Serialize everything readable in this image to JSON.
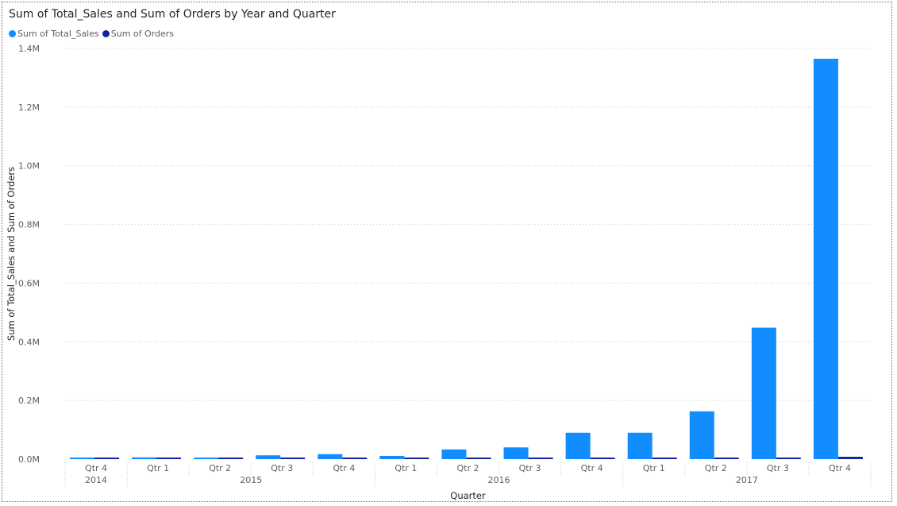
{
  "chart_data": {
    "type": "bar",
    "title": "Sum of Total_Sales and Sum of Orders by Year and Quarter",
    "xlabel": "Quarter",
    "ylabel": "Sum of Total_Sales and Sum of Orders",
    "ylim": [
      0,
      1400000
    ],
    "yticks": [
      {
        "value": 0,
        "label": "0.0M"
      },
      {
        "value": 200000,
        "label": "0.2M"
      },
      {
        "value": 400000,
        "label": "0.4M"
      },
      {
        "value": 600000,
        "label": "0.6M"
      },
      {
        "value": 800000,
        "label": "0.8M"
      },
      {
        "value": 1000000,
        "label": "1.0M"
      },
      {
        "value": 1200000,
        "label": "1.2M"
      },
      {
        "value": 1400000,
        "label": "1.4M"
      }
    ],
    "grid": true,
    "legend_position": "top-left",
    "categories": [
      {
        "quarter": "Qtr 4",
        "year": "2014"
      },
      {
        "quarter": "Qtr 1",
        "year": "2015"
      },
      {
        "quarter": "Qtr 2",
        "year": "2015"
      },
      {
        "quarter": "Qtr 3",
        "year": "2015"
      },
      {
        "quarter": "Qtr 4",
        "year": "2015"
      },
      {
        "quarter": "Qtr 1",
        "year": "2016"
      },
      {
        "quarter": "Qtr 2",
        "year": "2016"
      },
      {
        "quarter": "Qtr 3",
        "year": "2016"
      },
      {
        "quarter": "Qtr 4",
        "year": "2016"
      },
      {
        "quarter": "Qtr 1",
        "year": "2017"
      },
      {
        "quarter": "Qtr 2",
        "year": "2017"
      },
      {
        "quarter": "Qtr 3",
        "year": "2017"
      },
      {
        "quarter": "Qtr 4",
        "year": "2017"
      }
    ],
    "year_groups": [
      {
        "year": "2014",
        "start": 0,
        "end": 0
      },
      {
        "year": "2015",
        "start": 1,
        "end": 4
      },
      {
        "year": "2016",
        "start": 5,
        "end": 8
      },
      {
        "year": "2017",
        "start": 9,
        "end": 12
      }
    ],
    "series": [
      {
        "name": "Sum of Total_Sales",
        "color": "#118dff",
        "values": [
          4000,
          6000,
          3000,
          13000,
          17000,
          11000,
          33000,
          40000,
          90000,
          90000,
          163000,
          448000,
          1365000
        ]
      },
      {
        "name": "Sum of Orders",
        "color": "#12239e",
        "values": [
          300,
          400,
          300,
          800,
          1200,
          1000,
          2000,
          2500,
          4000,
          4000,
          4500,
          5000,
          8000
        ]
      }
    ]
  }
}
